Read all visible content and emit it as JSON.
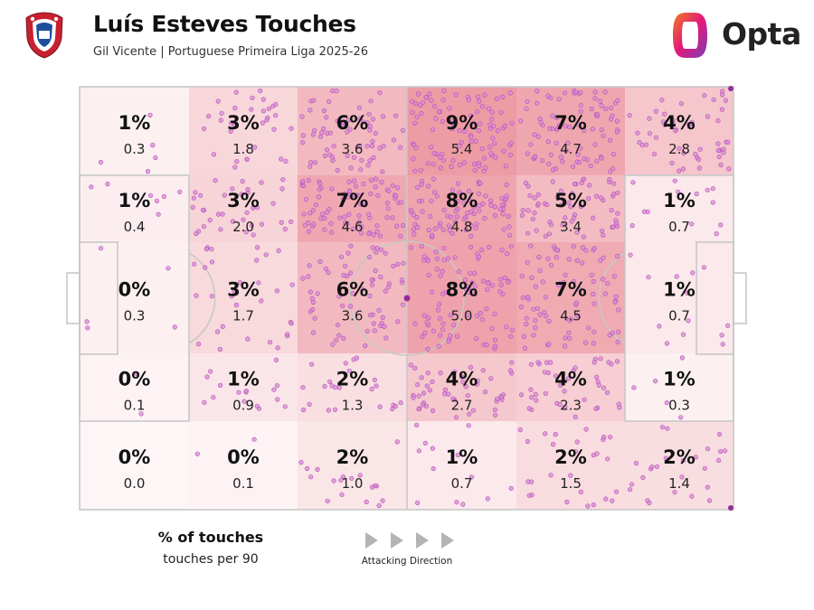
{
  "header": {
    "title": "Luís Esteves Touches",
    "subtitle": "Gil Vicente | Portuguese Primeira Liga 2025-26",
    "brand": "Opta"
  },
  "colors": {
    "heat": "#e8828e",
    "dot_fill": "#d98ad8",
    "dot_stroke": "#b24fb0",
    "line": "#c8c8c8",
    "brand_orange": "#f07d1f",
    "brand_pink": "#e2197a",
    "brand_purple": "#7a3db8"
  },
  "legend": {
    "pct_label": "% of touches",
    "per90_label": "touches per 90",
    "direction_label": "Attacking Direction"
  },
  "chart_data": {
    "type": "heatmap",
    "rows": 5,
    "cols": 6,
    "cells": [
      [
        {
          "pct": "1%",
          "per90": "0.3"
        },
        {
          "pct": "3%",
          "per90": "1.8"
        },
        {
          "pct": "6%",
          "per90": "3.6"
        },
        {
          "pct": "9%",
          "per90": "5.4"
        },
        {
          "pct": "7%",
          "per90": "4.7"
        },
        {
          "pct": "4%",
          "per90": "2.8"
        }
      ],
      [
        {
          "pct": "1%",
          "per90": "0.4"
        },
        {
          "pct": "3%",
          "per90": "2.0"
        },
        {
          "pct": "7%",
          "per90": "4.6"
        },
        {
          "pct": "8%",
          "per90": "4.8"
        },
        {
          "pct": "5%",
          "per90": "3.4"
        },
        {
          "pct": "1%",
          "per90": "0.7"
        }
      ],
      [
        {
          "pct": "0%",
          "per90": "0.3"
        },
        {
          "pct": "3%",
          "per90": "1.7"
        },
        {
          "pct": "6%",
          "per90": "3.6"
        },
        {
          "pct": "8%",
          "per90": "5.0"
        },
        {
          "pct": "7%",
          "per90": "4.5"
        },
        {
          "pct": "1%",
          "per90": "0.7"
        }
      ],
      [
        {
          "pct": "0%",
          "per90": "0.1"
        },
        {
          "pct": "1%",
          "per90": "0.9"
        },
        {
          "pct": "2%",
          "per90": "1.3"
        },
        {
          "pct": "4%",
          "per90": "2.7"
        },
        {
          "pct": "4%",
          "per90": "2.3"
        },
        {
          "pct": "1%",
          "per90": "0.3"
        }
      ],
      [
        {
          "pct": "0%",
          "per90": "0.0"
        },
        {
          "pct": "0%",
          "per90": "0.1"
        },
        {
          "pct": "2%",
          "per90": "1.0"
        },
        {
          "pct": "1%",
          "per90": "0.7"
        },
        {
          "pct": "2%",
          "per90": "1.5"
        },
        {
          "pct": "2%",
          "per90": "1.4"
        }
      ]
    ],
    "attacking_direction": "right"
  }
}
